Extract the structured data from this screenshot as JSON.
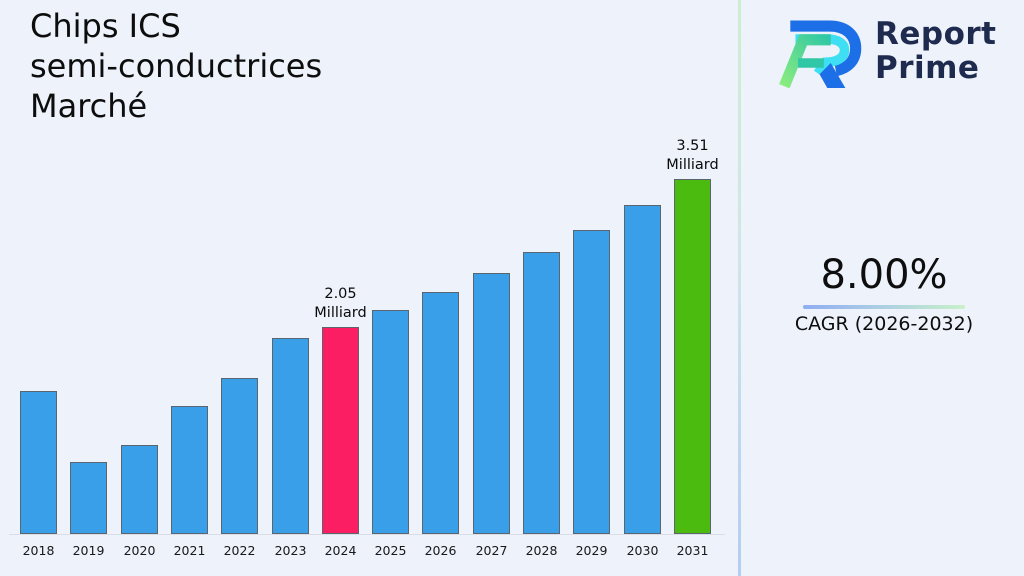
{
  "title": {
    "lines": [
      "Chips ICS",
      "semi-conductrices",
      "Marché"
    ]
  },
  "logo": {
    "line1": "Report",
    "line2": "Prime",
    "text_color": "#1e2a4e",
    "mark_colors": {
      "blue": "#1c6fe6",
      "cyan": "#3edff2",
      "green_light": "#8bec7f",
      "teal": "#2fc7a5"
    }
  },
  "kpi": {
    "value": "8.00%",
    "caption": "CAGR (2026-2032)"
  },
  "chart_data": {
    "type": "bar",
    "title": "Chips ICS semi-conductrices Marché",
    "xlabel": "",
    "ylabel": "",
    "unit": "Milliard",
    "categories": [
      "2018",
      "2019",
      "2020",
      "2021",
      "2022",
      "2023",
      "2024",
      "2025",
      "2026",
      "2027",
      "2028",
      "2029",
      "2030",
      "2031"
    ],
    "values": [
      1.41,
      0.71,
      0.88,
      1.27,
      1.54,
      1.94,
      2.05,
      2.21,
      2.39,
      2.58,
      2.79,
      3.01,
      3.25,
      3.51
    ],
    "ylim": [
      0,
      3.51
    ],
    "grid": false,
    "legend": "none",
    "bar_color": "#399fe8",
    "bar_edge_color": "#5b6570",
    "highlights": {
      "2024": "#fb1e63",
      "2031": "#4bbb10"
    },
    "annotations": [
      {
        "category": "2024",
        "lines": [
          "2.05",
          "Milliard"
        ]
      },
      {
        "category": "2031",
        "lines": [
          "3.51",
          "Milliard"
        ]
      }
    ]
  },
  "colors": {
    "background": "#edf2fb",
    "divider_top": "#cdeed0",
    "divider_bottom": "#b3cdf3",
    "underline_left": "#8fadf2",
    "underline_right": "#c9f0ca"
  }
}
